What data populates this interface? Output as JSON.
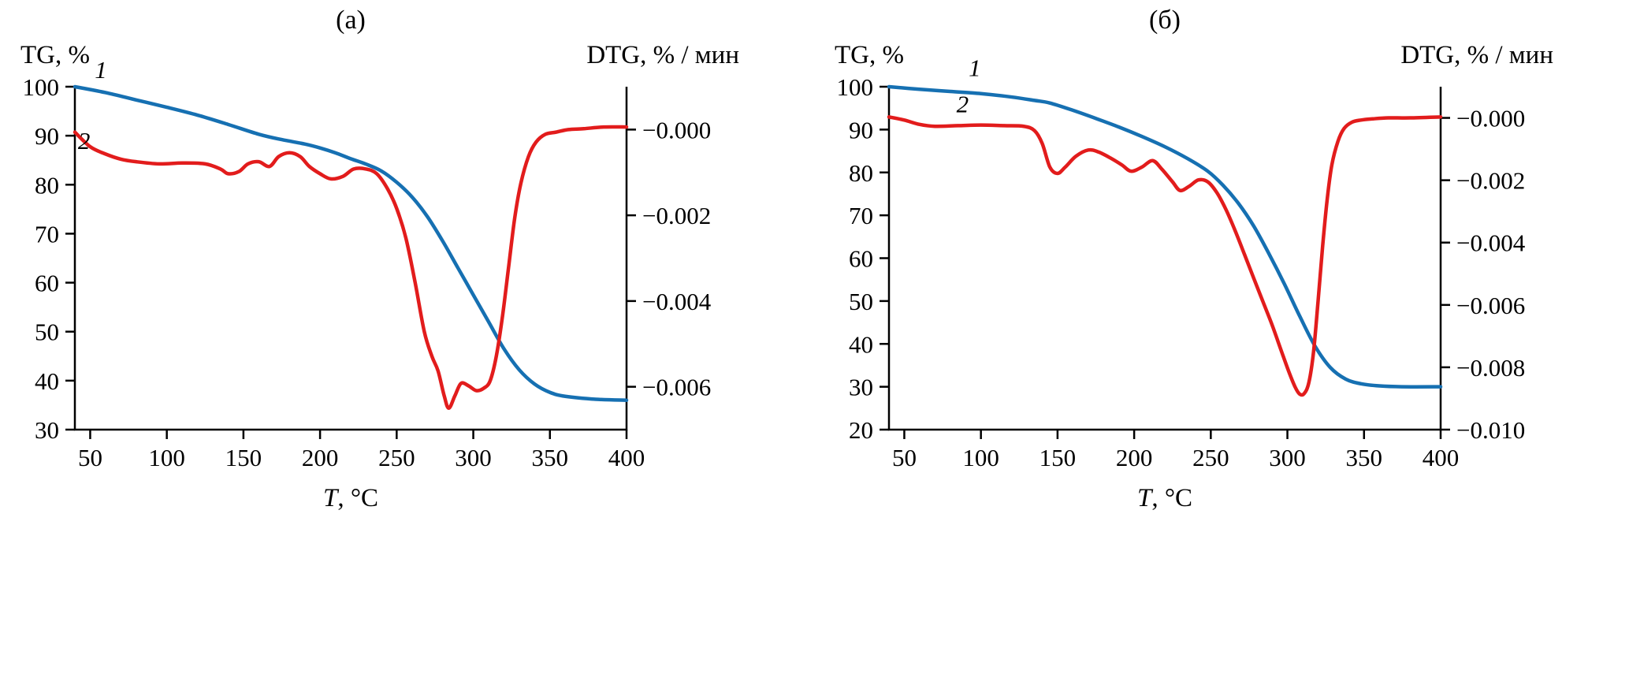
{
  "colors": {
    "tg": "#1670b2",
    "dtg": "#e21c1c",
    "axis": "#000000"
  },
  "chart_data": [
    {
      "type": "line",
      "title": "(а)",
      "left_ylabel": "TG, %",
      "right_ylabel": "DTG, % / мин",
      "xlabel": "T, °C",
      "xlabel_symbol": "T",
      "xlabel_unit": ", °C",
      "xlim": [
        40,
        400
      ],
      "xticks": [
        50,
        100,
        150,
        200,
        250,
        300,
        350,
        400
      ],
      "left_ylim": [
        30,
        100
      ],
      "left_yticks": [
        30,
        40,
        50,
        60,
        70,
        80,
        90,
        100
      ],
      "right_ylim": [
        -0.007,
        0.001
      ],
      "right_yticks": [
        0,
        -0.002,
        -0.004,
        -0.006
      ],
      "right_ytick_labels": [
        "−0.000",
        "−0.002",
        "−0.004",
        "−0.006"
      ],
      "grid": false,
      "legend": "none",
      "curve_labels": [
        {
          "text": "1",
          "x": 57,
          "y": 101.8
        },
        {
          "text": "2",
          "x": 46,
          "y": 87.3
        }
      ],
      "series": [
        {
          "name": "1",
          "data_name": "tg-curve",
          "axis": "left",
          "color_key": "tg",
          "x": [
            40,
            60,
            80,
            100,
            120,
            140,
            160,
            175,
            190,
            200,
            210,
            220,
            230,
            240,
            250,
            260,
            270,
            280,
            290,
            300,
            310,
            320,
            330,
            340,
            350,
            360,
            380,
            400
          ],
          "y": [
            100,
            98.8,
            97.3,
            95.8,
            94.2,
            92.3,
            90.3,
            89.2,
            88.3,
            87.5,
            86.5,
            85.3,
            84.2,
            82.8,
            80.5,
            77.5,
            73.5,
            68.5,
            63,
            57.5,
            52,
            46.5,
            42.2,
            39.3,
            37.6,
            36.8,
            36.2,
            36
          ]
        },
        {
          "name": "2",
          "data_name": "dtg-curve",
          "axis": "right",
          "color_key": "dtg",
          "x": [
            40,
            50,
            60,
            70,
            80,
            95,
            110,
            125,
            135,
            140,
            147,
            153,
            160,
            167,
            173,
            180,
            187,
            193,
            200,
            207,
            215,
            222,
            230,
            237,
            244,
            250,
            256,
            262,
            268,
            273,
            277,
            281,
            284,
            288,
            292,
            297,
            302,
            307,
            311,
            315,
            319,
            323,
            327,
            331,
            336,
            341,
            347,
            354,
            362,
            372,
            385,
            400
          ],
          "y": [
            -6e-05,
            -0.0004,
            -0.00057,
            -0.00069,
            -0.00075,
            -0.0008,
            -0.00078,
            -0.0008,
            -0.00092,
            -0.00103,
            -0.00098,
            -0.0008,
            -0.00075,
            -0.00086,
            -0.00063,
            -0.00054,
            -0.00063,
            -0.00086,
            -0.00103,
            -0.00115,
            -0.00109,
            -0.00092,
            -0.00092,
            -0.00103,
            -0.00138,
            -0.00184,
            -0.00253,
            -0.00356,
            -0.00471,
            -0.00529,
            -0.00563,
            -0.00621,
            -0.0065,
            -0.00621,
            -0.00592,
            -0.00598,
            -0.00609,
            -0.00603,
            -0.00586,
            -0.00529,
            -0.00437,
            -0.00322,
            -0.00207,
            -0.00126,
            -0.00063,
            -0.00029,
            -0.00011,
            -6e-05,
            0.0,
            2e-05,
            6e-05,
            6e-05
          ]
        }
      ]
    },
    {
      "type": "line",
      "title": "(б)",
      "left_ylabel": "TG, %",
      "right_ylabel": "DTG, % / мин",
      "xlabel": "T, °C",
      "xlabel_symbol": "T",
      "xlabel_unit": ", °C",
      "xlim": [
        40,
        400
      ],
      "xticks": [
        50,
        100,
        150,
        200,
        250,
        300,
        350,
        400
      ],
      "left_ylim": [
        20,
        100
      ],
      "left_yticks": [
        20,
        30,
        40,
        50,
        60,
        70,
        80,
        90,
        100
      ],
      "right_ylim": [
        -0.01,
        0.001
      ],
      "right_yticks": [
        0,
        -0.002,
        -0.004,
        -0.006,
        -0.008,
        -0.01
      ],
      "right_ytick_labels": [
        "−0.000",
        "−0.002",
        "−0.004",
        "−0.006",
        "−0.008",
        "−0.010"
      ],
      "grid": false,
      "legend": "none",
      "curve_labels": [
        {
          "text": "1",
          "x": 96,
          "y": 102.5
        },
        {
          "text": "2",
          "x": 88,
          "y": 94.0
        }
      ],
      "series": [
        {
          "name": "1",
          "data_name": "tg-curve",
          "axis": "left",
          "color_key": "tg",
          "x": [
            40,
            60,
            80,
            100,
            120,
            135,
            145,
            160,
            175,
            190,
            205,
            220,
            235,
            248,
            258,
            268,
            278,
            288,
            298,
            308,
            318,
            328,
            338,
            348,
            360,
            375,
            400
          ],
          "y": [
            100,
            99.4,
            98.9,
            98.4,
            97.6,
            96.8,
            96.2,
            94.5,
            92.6,
            90.6,
            88.4,
            86,
            83.2,
            80.3,
            77,
            72.8,
            67.5,
            61,
            54,
            46.5,
            39.5,
            34.5,
            31.8,
            30.7,
            30.2,
            30,
            30
          ]
        },
        {
          "name": "2",
          "data_name": "dtg-curve",
          "axis": "right",
          "color_key": "dtg",
          "x": [
            40,
            50,
            60,
            70,
            85,
            100,
            115,
            128,
            135,
            140,
            145,
            150,
            155,
            162,
            170,
            177,
            185,
            192,
            198,
            205,
            212,
            218,
            225,
            230,
            236,
            242,
            248,
            254,
            260,
            266,
            272,
            278,
            284,
            290,
            296,
            301,
            305,
            308,
            311,
            314,
            317,
            320,
            323,
            326,
            329,
            333,
            337,
            342,
            348,
            356,
            366,
            380,
            400
          ],
          "y": [
            3e-05,
            -7e-05,
            -0.00021,
            -0.00027,
            -0.00025,
            -0.00023,
            -0.00025,
            -0.00027,
            -0.00041,
            -0.00082,
            -0.00158,
            -0.00178,
            -0.00158,
            -0.00123,
            -0.00103,
            -0.0011,
            -0.0013,
            -0.00151,
            -0.00171,
            -0.00158,
            -0.00137,
            -0.00164,
            -0.00205,
            -0.00233,
            -0.00219,
            -0.00199,
            -0.00205,
            -0.0024,
            -0.00295,
            -0.00363,
            -0.00438,
            -0.00514,
            -0.00589,
            -0.00664,
            -0.00747,
            -0.00815,
            -0.00863,
            -0.00886,
            -0.00884,
            -0.00849,
            -0.00753,
            -0.00589,
            -0.00411,
            -0.0026,
            -0.00151,
            -0.00075,
            -0.00034,
            -0.00014,
            -7e-05,
            -3e-05,
            0.0,
            0.0,
            3e-05
          ]
        }
      ]
    }
  ]
}
